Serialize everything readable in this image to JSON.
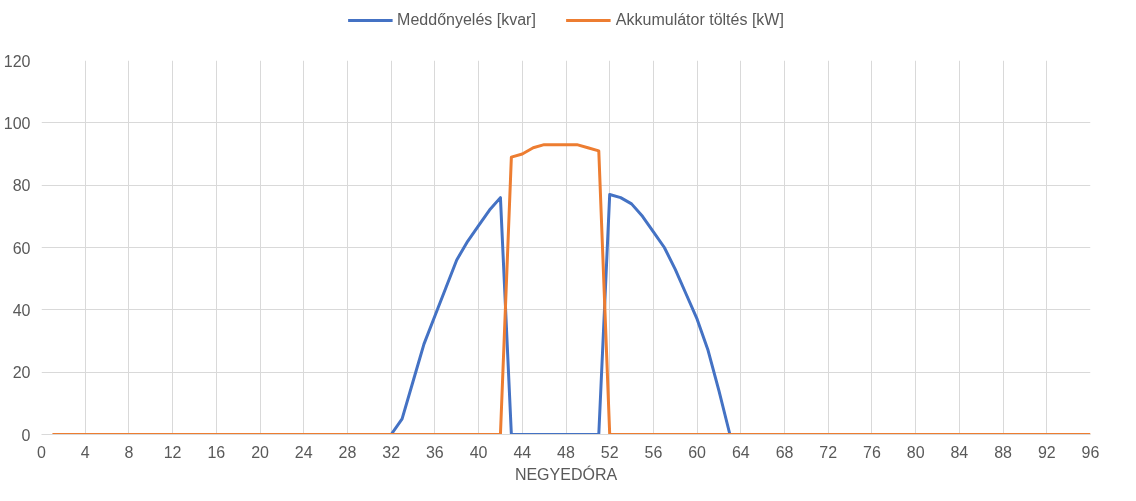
{
  "chart_data": {
    "type": "line",
    "xlabel": "NEGYEDÓRA",
    "x": [
      1,
      2,
      3,
      4,
      5,
      6,
      7,
      8,
      9,
      10,
      11,
      12,
      13,
      14,
      15,
      16,
      17,
      18,
      19,
      20,
      21,
      22,
      23,
      24,
      25,
      26,
      27,
      28,
      29,
      30,
      31,
      32,
      33,
      34,
      35,
      36,
      37,
      38,
      39,
      40,
      41,
      42,
      43,
      44,
      45,
      46,
      47,
      48,
      49,
      50,
      51,
      52,
      53,
      54,
      55,
      56,
      57,
      58,
      59,
      60,
      61,
      62,
      63,
      64,
      65,
      66,
      67,
      68,
      69,
      70,
      71,
      72,
      73,
      74,
      75,
      76,
      77,
      78,
      79,
      80,
      81,
      82,
      83,
      84,
      85,
      86,
      87,
      88,
      89,
      90,
      91,
      92,
      93,
      94,
      95,
      96
    ],
    "series": [
      {
        "name": "Meddőnyelés [kvar]",
        "color": "#4472c4",
        "values": [
          null,
          null,
          null,
          null,
          null,
          null,
          null,
          null,
          null,
          null,
          null,
          null,
          null,
          null,
          null,
          null,
          null,
          null,
          null,
          null,
          null,
          null,
          null,
          null,
          null,
          null,
          null,
          null,
          null,
          null,
          null,
          0,
          5,
          17,
          29,
          38,
          47,
          56,
          62,
          67,
          72,
          76,
          0,
          0,
          0,
          0,
          0,
          0,
          0,
          0,
          0,
          77,
          76,
          74,
          70,
          65,
          60,
          53,
          45,
          37,
          27,
          14,
          0,
          null,
          null,
          null,
          null,
          null,
          null,
          null,
          null,
          null,
          null,
          null,
          null,
          null,
          null,
          null,
          null,
          null,
          null,
          null,
          null,
          null,
          null,
          null,
          null,
          null,
          null,
          null,
          null,
          null,
          null,
          null,
          null,
          null
        ]
      },
      {
        "name": "Akkumulátor töltés [kW]",
        "color": "#ed7d31",
        "values": [
          0,
          0,
          0,
          0,
          0,
          0,
          0,
          0,
          0,
          0,
          0,
          0,
          0,
          0,
          0,
          0,
          0,
          0,
          0,
          0,
          0,
          0,
          0,
          0,
          0,
          0,
          0,
          0,
          0,
          0,
          0,
          0,
          0,
          0,
          0,
          0,
          0,
          0,
          0,
          0,
          0,
          0,
          89,
          90,
          92,
          93,
          93,
          93,
          93,
          92,
          91,
          0,
          0,
          0,
          0,
          0,
          0,
          0,
          0,
          0,
          0,
          0,
          0,
          0,
          0,
          0,
          0,
          0,
          0,
          0,
          0,
          0,
          0,
          0,
          0,
          0,
          0,
          0,
          0,
          0,
          0,
          0,
          0,
          0,
          0,
          0,
          0,
          0,
          0,
          0,
          0,
          0,
          0,
          0,
          0,
          0
        ]
      }
    ],
    "xlim": [
      0,
      96
    ],
    "xticks": [
      0,
      4,
      8,
      12,
      16,
      20,
      24,
      28,
      32,
      36,
      40,
      44,
      48,
      52,
      56,
      60,
      64,
      68,
      72,
      76,
      80,
      84,
      88,
      92,
      96
    ],
    "ylim": [
      0,
      120
    ],
    "yticks": [
      0,
      20,
      40,
      60,
      80,
      100,
      120
    ],
    "grid": true,
    "legend": "top",
    "marker": "none",
    "line_style": "solid"
  }
}
